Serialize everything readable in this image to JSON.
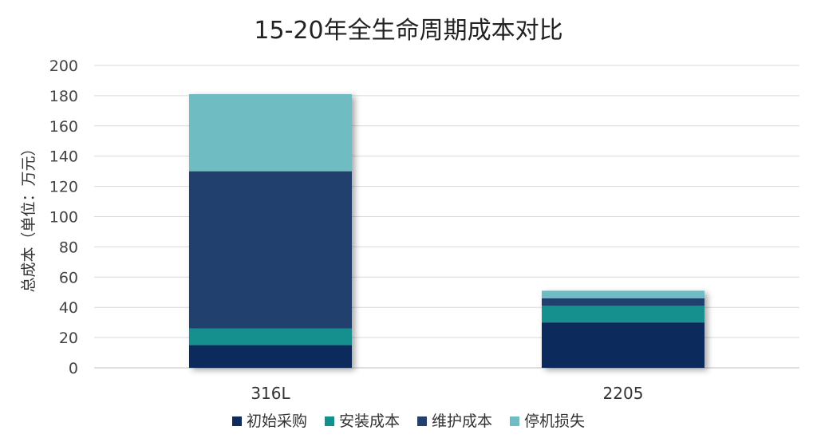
{
  "chart_data": {
    "type": "bar",
    "stacked": true,
    "title": "15-20年全生命周期成本对比",
    "xlabel": "",
    "ylabel": "总成本（单位：万元）",
    "categories": [
      "316L",
      "2205"
    ],
    "ylim": [
      0,
      200
    ],
    "yticks": [
      0,
      20,
      40,
      60,
      80,
      100,
      120,
      140,
      160,
      180,
      200
    ],
    "grid": true,
    "legend_position": "bottom",
    "series": [
      {
        "name": "初始采购",
        "values": [
          15,
          30
        ],
        "color": "#0f2a5c"
      },
      {
        "name": "安装成本",
        "values": [
          11,
          11
        ],
        "color": "#13908e"
      },
      {
        "name": "维护成本",
        "values": [
          104,
          5
        ],
        "color": "#243f6e"
      },
      {
        "name": "停机损失",
        "values": [
          51,
          5
        ],
        "color": "#6fbcc3"
      }
    ]
  }
}
